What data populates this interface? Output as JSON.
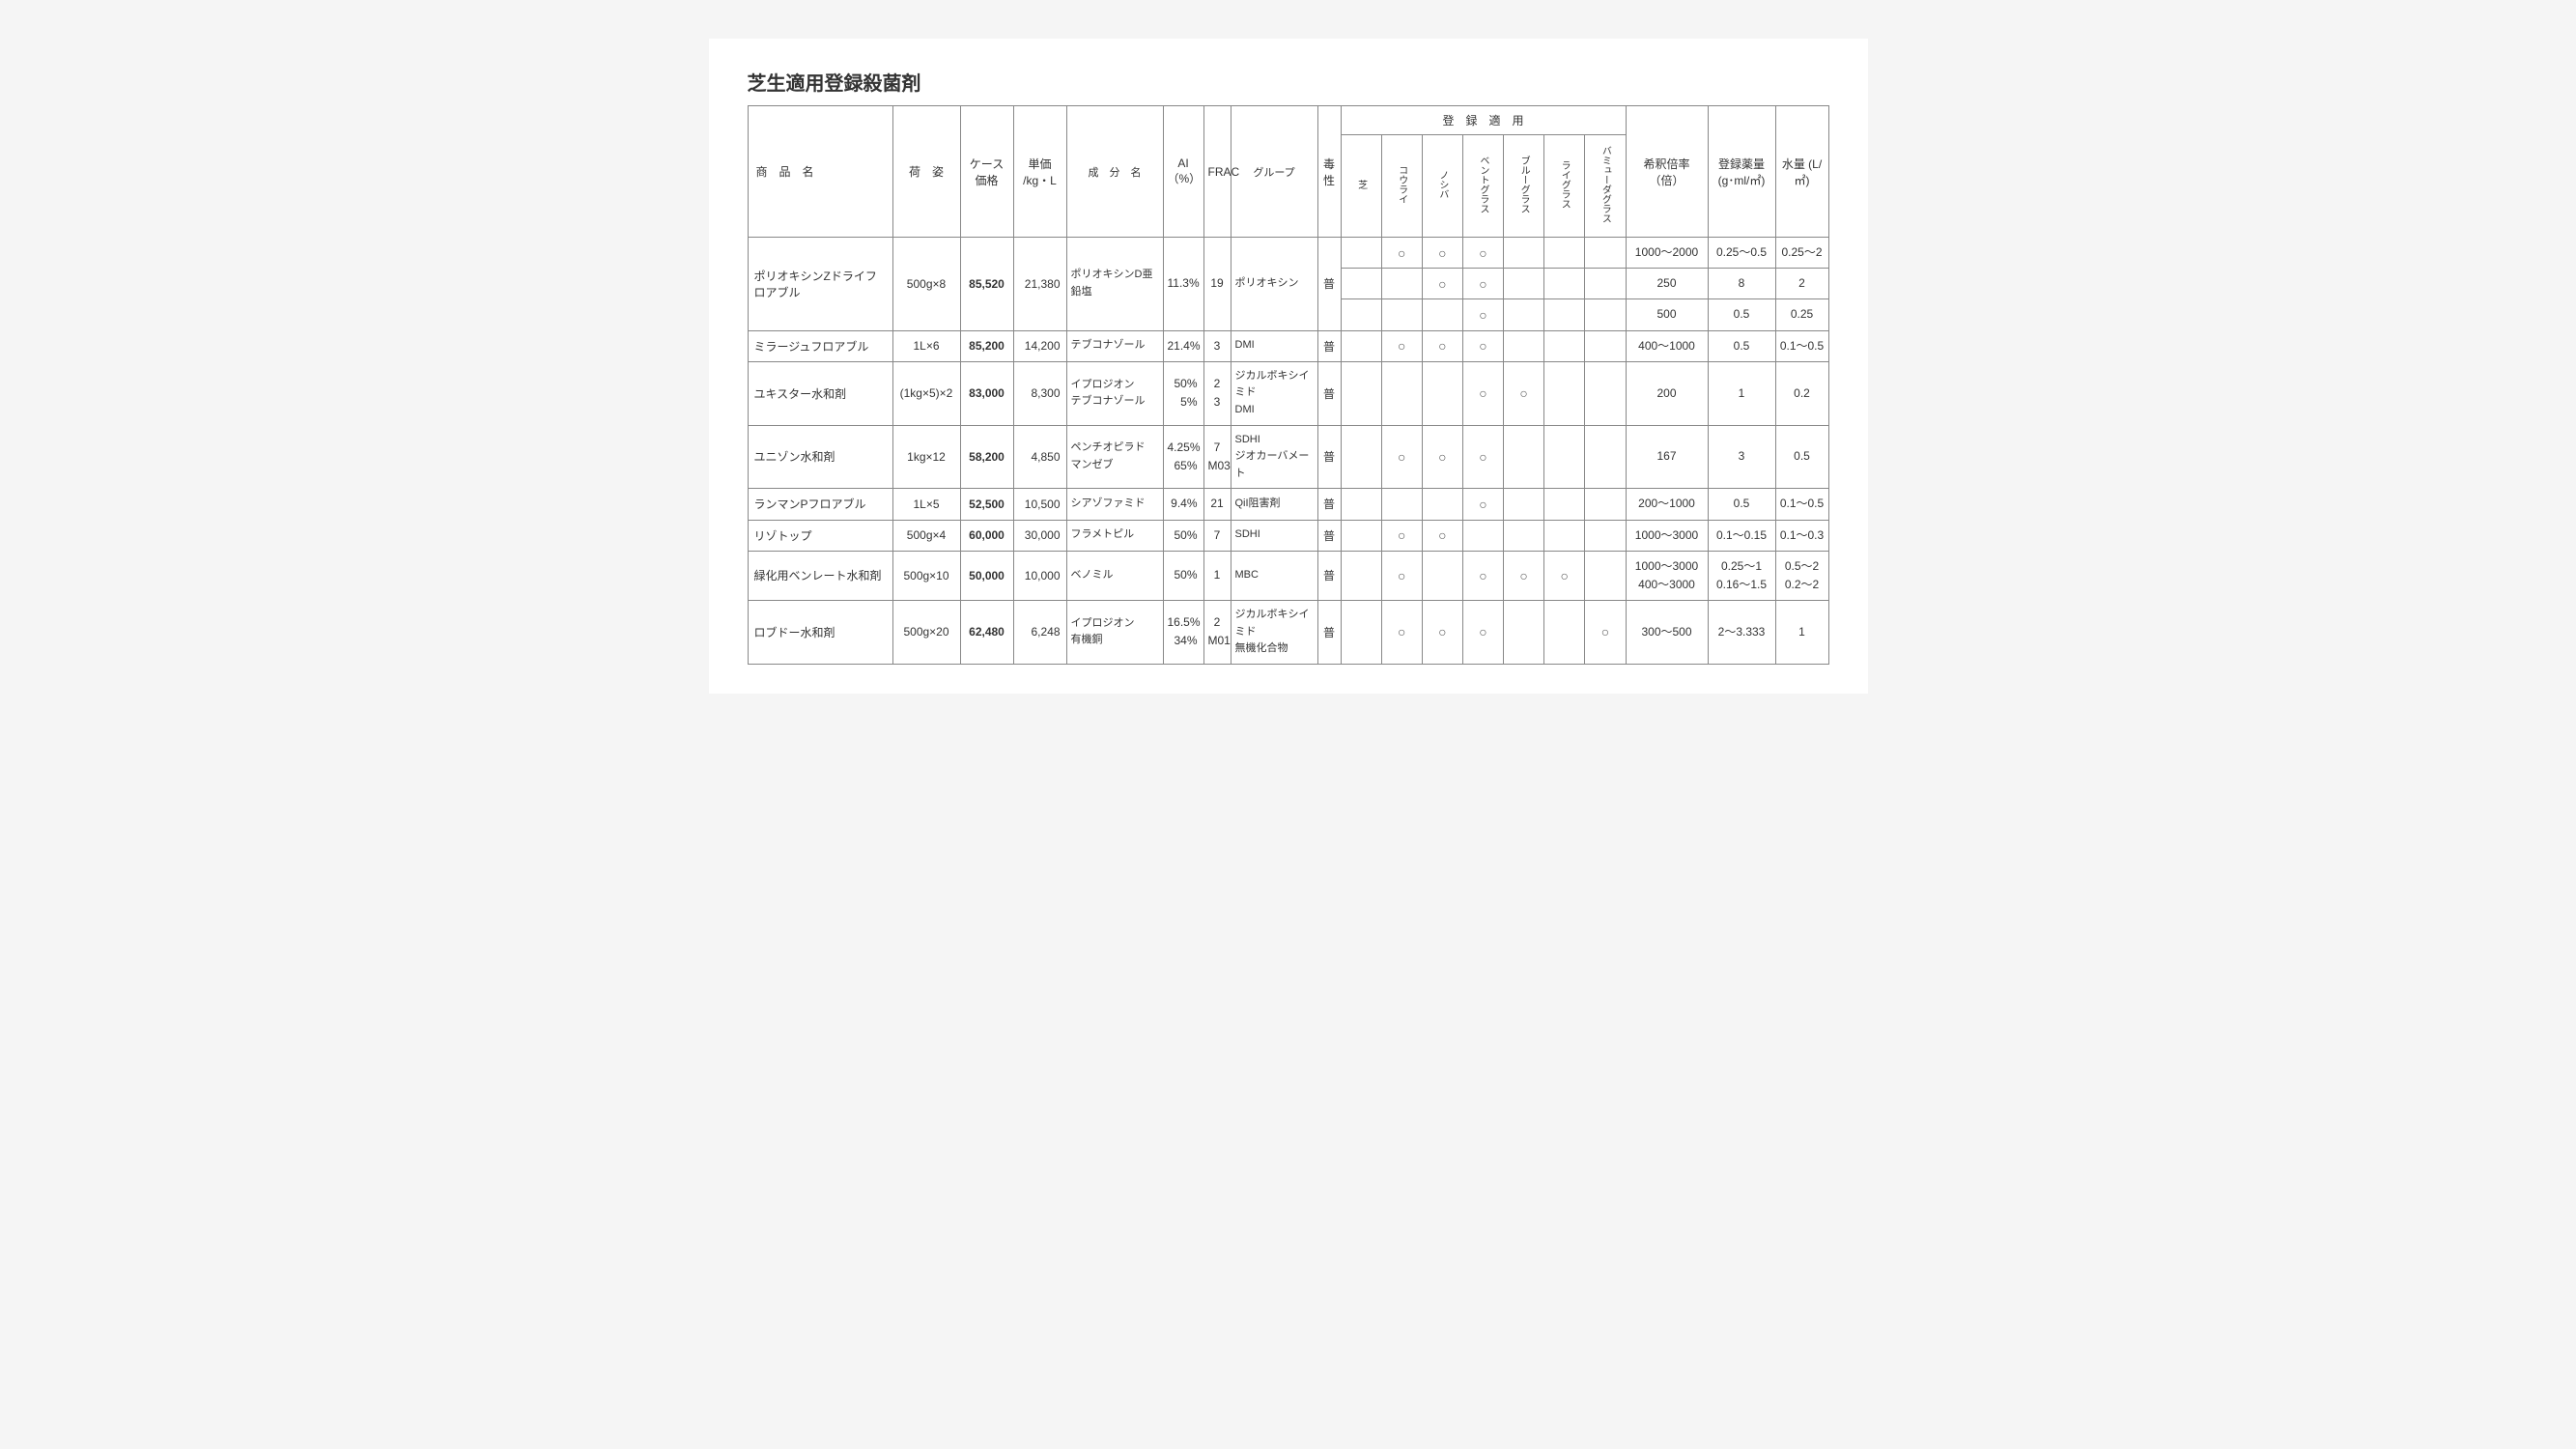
{
  "title": "芝生適用登録殺菌剤",
  "header": {
    "name": "商　品　名",
    "form": "荷　姿",
    "case_price": "ケース価格",
    "unit_price": "単価 /kg・L",
    "ingredient": "成　分　名",
    "ai": "AI（%）",
    "frac": "FRAC",
    "group": "グループ",
    "toxicity": "毒性",
    "registered_group": "登　録　適　用",
    "reg_cols": [
      "芝",
      "コウライ",
      "ノシバ",
      "ベントグラス",
      "ブルーグラス",
      "ライグラス",
      "バミューダグラス"
    ],
    "dilution": "希釈倍率（倍）",
    "dose": "登録薬量 (g･ml/㎡)",
    "water": "水量 (L/㎡)"
  },
  "mark": "○",
  "rows": [
    {
      "name": "ポリオキシンZドライフロアブル",
      "form": "500g×8",
      "case_price": "85,520",
      "unit_price": "21,380",
      "ingredient": "ポリオキシンD亜鉛塩",
      "ai": "11.3%",
      "frac": "19",
      "group": "ポリオキシン",
      "tox": "普",
      "sub": [
        {
          "reg": [
            0,
            1,
            1,
            1,
            0,
            0,
            0
          ],
          "dil": "1000～2000",
          "dose": "0.25～0.5",
          "water": "0.25～2"
        },
        {
          "reg": [
            0,
            0,
            1,
            1,
            0,
            0,
            0
          ],
          "dil": "250",
          "dose": "8",
          "water": "2"
        },
        {
          "reg": [
            0,
            0,
            0,
            1,
            0,
            0,
            0
          ],
          "dil": "500",
          "dose": "0.5",
          "water": "0.25"
        }
      ]
    },
    {
      "name": "ミラージュフロアブル",
      "form": "1L×6",
      "case_price": "85,200",
      "unit_price": "14,200",
      "ingredient": "テブコナゾール",
      "ai": "21.4%",
      "frac": "3",
      "group": "DMI",
      "tox": "普",
      "sub": [
        {
          "reg": [
            0,
            1,
            1,
            1,
            0,
            0,
            0
          ],
          "dil": "400～1000",
          "dose": "0.5",
          "water": "0.1～0.5"
        }
      ]
    },
    {
      "name": "ユキスター水和剤",
      "form": "(1kg×5)×2",
      "case_price": "83,000",
      "unit_price": "8,300",
      "ingredient": "イプロジオン\nテブコナゾール",
      "ai": "50%\n5%",
      "frac": "2\n3",
      "group": "ジカルボキシイミド\nDMI",
      "tox": "普",
      "sub": [
        {
          "reg": [
            0,
            0,
            0,
            1,
            1,
            0,
            0
          ],
          "dil": "200",
          "dose": "1",
          "water": "0.2"
        }
      ]
    },
    {
      "name": "ユニゾン水和剤",
      "form": "1kg×12",
      "case_price": "58,200",
      "unit_price": "4,850",
      "ingredient": "ペンチオピラド\nマンゼブ",
      "ai": "4.25%\n65%",
      "frac": "7\nM03",
      "group": "SDHI\nジオカーバメート",
      "tox": "普",
      "sub": [
        {
          "reg": [
            0,
            1,
            1,
            1,
            0,
            0,
            0
          ],
          "dil": "167",
          "dose": "3",
          "water": "0.5"
        }
      ]
    },
    {
      "name": "ランマンPフロアブル",
      "form": "1L×5",
      "case_price": "52,500",
      "unit_price": "10,500",
      "ingredient": "シアゾファミド",
      "ai": "9.4%",
      "frac": "21",
      "group": "QiI阻害剤",
      "tox": "普",
      "sub": [
        {
          "reg": [
            0,
            0,
            0,
            1,
            0,
            0,
            0
          ],
          "dil": "200～1000",
          "dose": "0.5",
          "water": "0.1～0.5"
        }
      ]
    },
    {
      "name": "リゾトップ",
      "form": "500g×4",
      "case_price": "60,000",
      "unit_price": "30,000",
      "ingredient": "フラメトピル",
      "ai": "50%",
      "frac": "7",
      "group": "SDHI",
      "tox": "普",
      "sub": [
        {
          "reg": [
            0,
            1,
            1,
            0,
            0,
            0,
            0
          ],
          "dil": "1000～3000",
          "dose": "0.1～0.15",
          "water": "0.1～0.3"
        }
      ]
    },
    {
      "name": "緑化用ベンレート水和剤",
      "form": "500g×10",
      "case_price": "50,000",
      "unit_price": "10,000",
      "ingredient": "ベノミル",
      "ai": "50%",
      "frac": "1",
      "group": "MBC",
      "tox": "普",
      "sub": [
        {
          "reg": [
            0,
            1,
            0,
            1,
            1,
            1,
            0
          ],
          "dil": "1000～3000\n400～3000",
          "dose": "0.25～1\n0.16～1.5",
          "water": "0.5～2\n0.2～2"
        }
      ]
    },
    {
      "name": "ロブドー水和剤",
      "form": "500g×20",
      "case_price": "62,480",
      "unit_price": "6,248",
      "ingredient": "イプロジオン\n有機銅",
      "ai": "16.5%\n34%",
      "frac": "2\nM01",
      "group": "ジカルボキシイミド\n無機化合物",
      "tox": "普",
      "sub": [
        {
          "reg": [
            0,
            1,
            1,
            1,
            0,
            0,
            1
          ],
          "dil": "300～500",
          "dose": "2～3.333",
          "water": "1"
        }
      ]
    }
  ]
}
